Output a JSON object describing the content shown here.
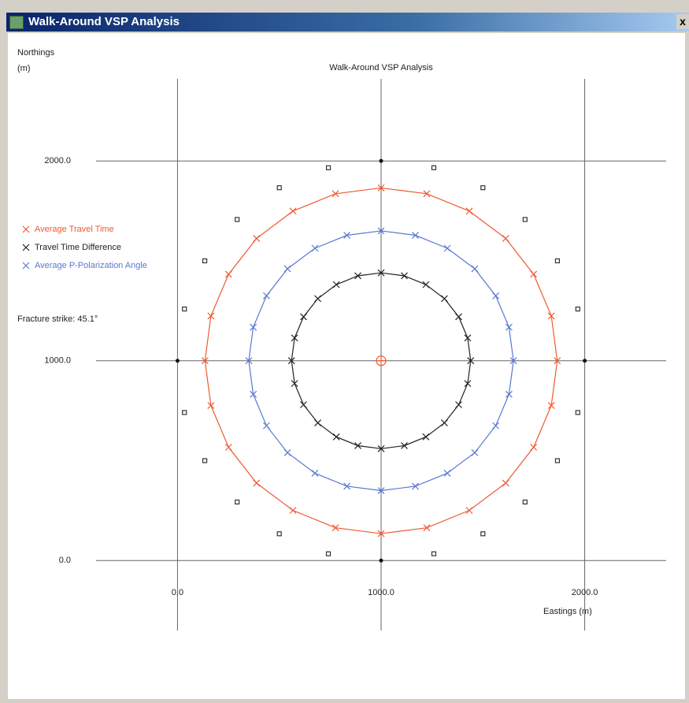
{
  "window": {
    "title": "Walk-Around VSP Analysis",
    "close": "x"
  },
  "chart_data": {
    "type": "scatter",
    "title": "Walk-Around VSP Analysis",
    "y_label": [
      "Northings",
      "(m)"
    ],
    "x_label": "Eastings (m)",
    "annotation": "Fracture strike: 45.1°",
    "xlim": [
      -400,
      2400
    ],
    "ylim": [
      -350,
      2411
    ],
    "xticks": [
      {
        "value": 0,
        "label": "0.0"
      },
      {
        "value": 1000,
        "label": "1000.0"
      },
      {
        "value": 2000,
        "label": "2000.0"
      }
    ],
    "yticks": [
      {
        "value": 0,
        "label": "0.0"
      },
      {
        "value": 1000,
        "label": "1000.0"
      },
      {
        "value": 2000,
        "label": "2000.0"
      }
    ],
    "grid": true,
    "legend": "left",
    "series": [
      {
        "name": "Average Travel Time",
        "color": "#f05a32",
        "marker": "x",
        "line": true,
        "x": [
          1000,
          1224,
          1433,
          1612,
          1749,
          1836,
          1865,
          1836,
          1749,
          1612,
          1433,
          1224,
          1000,
          776,
          567,
          388,
          251,
          164,
          135,
          164,
          251,
          388,
          567,
          776
        ],
        "values": [
          1865,
          1836,
          1749,
          1612,
          1433,
          1224,
          1000,
          776,
          567,
          388,
          251,
          164,
          135,
          164,
          251,
          388,
          567,
          776,
          1000,
          1224,
          1433,
          1612,
          1749,
          1836
        ]
      },
      {
        "name": "Travel Time Difference",
        "color": "#222222",
        "marker": "x",
        "line": true,
        "x": [
          1000,
          1114,
          1220,
          1311,
          1381,
          1425,
          1440,
          1425,
          1381,
          1311,
          1220,
          1114,
          1000,
          886,
          780,
          689,
          619,
          575,
          560,
          575,
          619,
          689,
          780,
          886
        ],
        "values": [
          1440,
          1425,
          1381,
          1311,
          1220,
          1114,
          1000,
          886,
          780,
          689,
          619,
          575,
          560,
          575,
          619,
          689,
          780,
          886,
          1000,
          1114,
          1220,
          1311,
          1381,
          1425
        ]
      },
      {
        "name": "Average P-Polarization Angle",
        "color": "#5a78d2",
        "marker": "x",
        "line": true,
        "x": [
          1000,
          1168,
          1325,
          1460,
          1563,
          1628,
          1650,
          1628,
          1563,
          1460,
          1325,
          1168,
          1000,
          832,
          675,
          540,
          437,
          372,
          350,
          372,
          437,
          540,
          675,
          832
        ],
        "values": [
          1650,
          1628,
          1563,
          1460,
          1325,
          1168,
          1000,
          832,
          675,
          540,
          437,
          372,
          350,
          372,
          437,
          540,
          675,
          832,
          1000,
          1168,
          1325,
          1460,
          1563,
          1628
        ]
      },
      {
        "color": "#333333",
        "marker": "square",
        "line": false,
        "x": [
          1259,
          1500,
          1707,
          1866,
          1966,
          1966,
          1866,
          1707,
          1500,
          1259,
          741,
          500,
          293,
          134,
          34,
          34,
          134,
          293,
          500,
          741
        ],
        "values": [
          1966,
          1866,
          1707,
          1500,
          1259,
          741,
          500,
          293,
          134,
          34,
          34,
          134,
          293,
          500,
          741,
          1259,
          1500,
          1707,
          1866,
          1966
        ]
      },
      {
        "color": "#111111",
        "marker": "dot",
        "line": false,
        "x": [
          1000,
          2000,
          1000,
          0
        ],
        "values": [
          2000,
          1000,
          0,
          1000
        ]
      },
      {
        "color": "#f05a32",
        "marker": "circle",
        "line": false,
        "x": [
          1000
        ],
        "values": [
          1000
        ]
      }
    ]
  }
}
